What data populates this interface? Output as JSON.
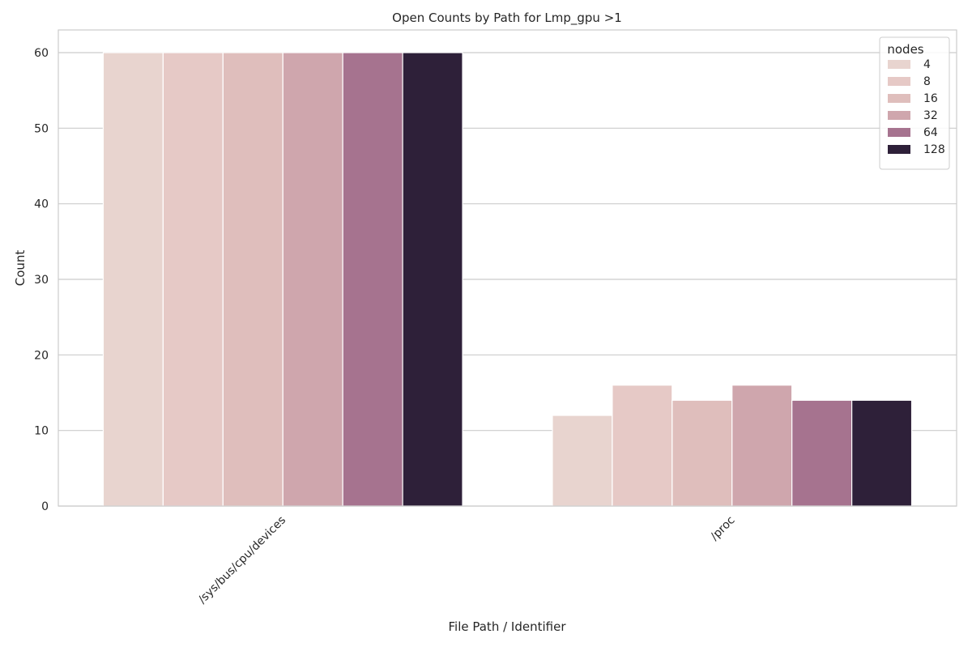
{
  "chart_data": {
    "type": "bar",
    "title": "Open Counts by Path for Lmp_gpu >1",
    "xlabel": "File Path / Identifier",
    "ylabel": "Count",
    "categories": [
      "/sys/bus/cpu/devices",
      "/proc"
    ],
    "ylim": [
      0,
      63
    ],
    "yticks": [
      0,
      10,
      20,
      30,
      40,
      50,
      60
    ],
    "grid": true,
    "legend": {
      "title": "nodes",
      "placement": "top-right"
    },
    "series": [
      {
        "name": "4",
        "color": "#e8d4cf",
        "values": [
          60,
          12
        ]
      },
      {
        "name": "8",
        "color": "#e6c9c6",
        "values": [
          60,
          16
        ]
      },
      {
        "name": "16",
        "color": "#dfbebc",
        "values": [
          60,
          14
        ]
      },
      {
        "name": "32",
        "color": "#cfa6ad",
        "values": [
          60,
          16
        ]
      },
      {
        "name": "64",
        "color": "#a6738f",
        "values": [
          60,
          14
        ]
      },
      {
        "name": "128",
        "color": "#2e2039",
        "values": [
          60,
          14
        ]
      }
    ]
  }
}
